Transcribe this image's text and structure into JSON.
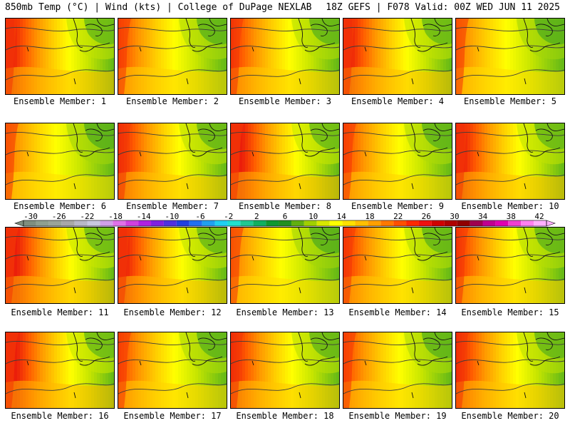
{
  "header": {
    "left": "850mb Temp (°C) | Wind (kts) | College of DuPage NEXLAB",
    "right": "18Z GEFS | F078 Valid: 00Z WED JUN 11 2025"
  },
  "panels": [
    {
      "label": "Ensemble Member: 1",
      "warmth": 0.55
    },
    {
      "label": "Ensemble Member: 2",
      "warmth": 0.4
    },
    {
      "label": "Ensemble Member: 3",
      "warmth": 0.45
    },
    {
      "label": "Ensemble Member: 4",
      "warmth": 0.55
    },
    {
      "label": "Ensemble Member: 5",
      "warmth": 0.3
    },
    {
      "label": "Ensemble Member: 6",
      "warmth": 0.3
    },
    {
      "label": "Ensemble Member: 7",
      "warmth": 0.5
    },
    {
      "label": "Ensemble Member: 8",
      "warmth": 0.6
    },
    {
      "label": "Ensemble Member: 9",
      "warmth": 0.4
    },
    {
      "label": "Ensemble Member: 10",
      "warmth": 0.55
    },
    {
      "label": "Ensemble Member: 11",
      "warmth": 0.6
    },
    {
      "label": "Ensemble Member: 12",
      "warmth": 0.55
    },
    {
      "label": "Ensemble Member: 13",
      "warmth": 0.3
    },
    {
      "label": "Ensemble Member: 14",
      "warmth": 0.45
    },
    {
      "label": "Ensemble Member: 15",
      "warmth": 0.45
    },
    {
      "label": "Ensemble Member: 16",
      "warmth": 0.6
    },
    {
      "label": "Ensemble Member: 17",
      "warmth": 0.4
    },
    {
      "label": "Ensemble Member: 18",
      "warmth": 0.5
    },
    {
      "label": "Ensemble Member: 19",
      "warmth": 0.4
    },
    {
      "label": "Ensemble Member: 20",
      "warmth": 0.5
    }
  ],
  "colorbar": {
    "labels": [
      "-30",
      "-26",
      "-22",
      "-18",
      "-14",
      "-10",
      "-6",
      "-2",
      "2",
      "6",
      "10",
      "14",
      "18",
      "22",
      "26",
      "30",
      "34",
      "38",
      "42"
    ],
    "colors": [
      "#7f8f7f",
      "#8fa08f",
      "#9aa49a",
      "#a8a8a8",
      "#b8b8c8",
      "#c8c8e0",
      "#d0a0e8",
      "#e070e8",
      "#d040e0",
      "#b020e0",
      "#8020e0",
      "#5030e0",
      "#2040e0",
      "#2070f0",
      "#20a0f0",
      "#20d0f0",
      "#20e0d0",
      "#20c890",
      "#10b060",
      "#109830",
      "#209020",
      "#60b010",
      "#a0d000",
      "#d8e800",
      "#ffff00",
      "#ffe000",
      "#ffc000",
      "#ffa000",
      "#ff7800",
      "#ff5000",
      "#ff2800",
      "#f01010",
      "#d00000",
      "#b00000",
      "#900000",
      "#a00050",
      "#c00090",
      "#e000b0",
      "#f040d0",
      "#ff80f0",
      "#ffb0ff"
    ]
  }
}
